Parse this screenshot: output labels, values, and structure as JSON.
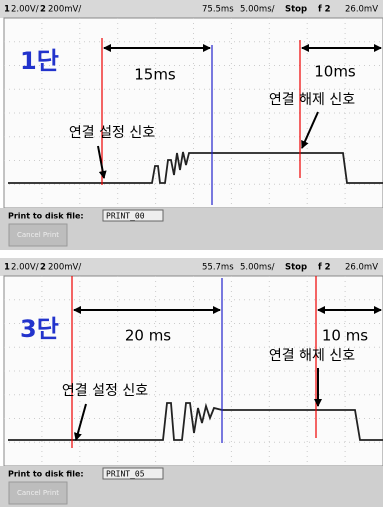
{
  "panels": [
    {
      "header": {
        "ch1": "1",
        "ch1_scale": "2.00V/",
        "ch2": "2",
        "ch2_scale": "200mV/",
        "delay": "75.5ms",
        "timebase": "5.00ms/",
        "status": "Stop",
        "trigger": "f 2",
        "level": "26.0mV"
      },
      "stage": "1단",
      "interval_left": "15ms",
      "interval_right": "10ms",
      "release_label": "연결 해제 신호",
      "setup_label": "연결 설정 신호",
      "print_label": "Print to disk file:",
      "file_name": "PRINT_00",
      "button": "Cancel Print"
    },
    {
      "header": {
        "ch1": "1",
        "ch1_scale": "2.00V/",
        "ch2": "2",
        "ch2_scale": "200mV/",
        "delay": "55.7ms",
        "timebase": "5.00ms/",
        "status": "Stop",
        "trigger": "f 2",
        "level": "26.0mV"
      },
      "stage": "3단",
      "interval_left": "20 ms",
      "interval_right": "10 ms",
      "release_label": "연결 해제 신호",
      "setup_label": "연결 설정 신호",
      "print_label": "Print to disk file:",
      "file_name": "PRINT_05",
      "button": "Cancel Print"
    }
  ]
}
